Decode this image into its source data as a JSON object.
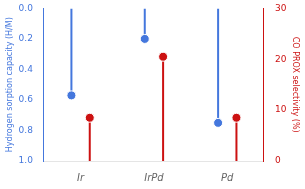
{
  "chart_data": {
    "type": "bar",
    "categories": [
      "Ir",
      "IrPd",
      "Pd"
    ],
    "ylabel": "Hydrogen sorption capacity (H/M)",
    "y2label": "CO PROX selectivity (%)",
    "ylim": [
      1.0,
      0.0
    ],
    "yticks": [
      {
        "value": 0,
        "label": "0.0"
      },
      0.2,
      0.4,
      0.6,
      0.8,
      {
        "value": 1,
        "label": "1.0"
      }
    ],
    "y2lim": [
      0,
      30
    ],
    "y2ticks": [
      0,
      10,
      20,
      30
    ],
    "series": [
      {
        "color": "#4477dd",
        "values": [
          0.57,
          0.2,
          0.75
        ],
        "marker": "circle"
      },
      {
        "color": "#cc1111",
        "values": [
          8.5,
          20.5,
          8.5
        ],
        "axis": "y2",
        "marker": "circle"
      }
    ],
    "grid": false
  }
}
